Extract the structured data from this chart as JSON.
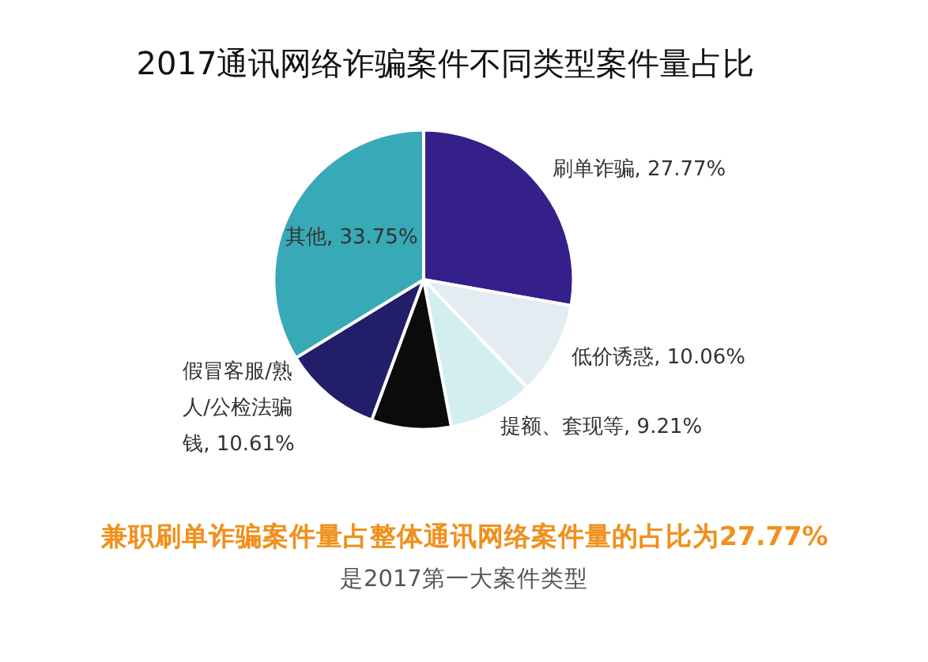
{
  "chart_data": {
    "type": "pie",
    "title": "2017通讯网络诈骗案件不同类型案件量占比",
    "categories": [
      "刷单诈骗",
      "低价诱惑",
      "提额、套现等",
      null,
      "假冒客服/熟人/公检法骗钱",
      "其他"
    ],
    "values": [
      27.77,
      10.06,
      9.21,
      8.6,
      10.61,
      33.75
    ],
    "colors": [
      "#35208a",
      "#e2ecf1",
      "#d3eeee",
      "#0b0b0b",
      "#221e6a",
      "#38a9b6"
    ],
    "value_labels": [
      "27.77%",
      "10.06%",
      "9.21%",
      null,
      "10.61%",
      "33.75%"
    ],
    "annotations": [
      "兼职刷单诈骗案件量占整体通讯网络案件量的占比为27.77%",
      "是2017第一大案件类型"
    ]
  }
}
